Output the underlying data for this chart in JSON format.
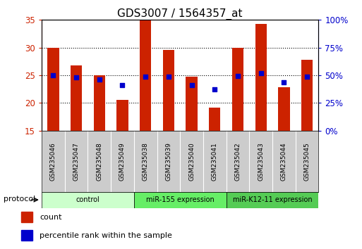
{
  "title": "GDS3007 / 1564357_at",
  "samples": [
    "GSM235046",
    "GSM235047",
    "GSM235048",
    "GSM235049",
    "GSM235038",
    "GSM235039",
    "GSM235040",
    "GSM235041",
    "GSM235042",
    "GSM235043",
    "GSM235044",
    "GSM235045"
  ],
  "count_values": [
    30.0,
    26.8,
    25.0,
    20.6,
    35.0,
    29.6,
    24.8,
    19.2,
    30.0,
    34.3,
    22.8,
    27.8
  ],
  "percentile_values": [
    25.0,
    24.6,
    24.2,
    23.2,
    24.8,
    24.8,
    23.2,
    22.5,
    24.9,
    25.4,
    23.8,
    24.8
  ],
  "ylim": [
    15,
    35
  ],
  "y2lim": [
    0,
    100
  ],
  "yticks": [
    15,
    20,
    25,
    30,
    35
  ],
  "y2ticks": [
    0,
    25,
    50,
    75,
    100
  ],
  "y2ticklabels": [
    "0%",
    "25%",
    "50%",
    "75%",
    "100%"
  ],
  "bar_color": "#cc2200",
  "dot_color": "#0000cc",
  "bg_color": "#ffffff",
  "plot_bg": "#ffffff",
  "sample_box_color": "#cccccc",
  "group_labels": [
    "control",
    "miR-155 expression",
    "miR-K12-11 expression"
  ],
  "group_ranges": [
    [
      0,
      3
    ],
    [
      4,
      7
    ],
    [
      8,
      11
    ]
  ],
  "group_colors_bg": [
    "#ccffcc",
    "#66ee66",
    "#55cc55"
  ],
  "protocol_label": "protocol",
  "legend_count": "count",
  "legend_pct": "percentile rank within the sample",
  "title_fontsize": 11,
  "bar_width": 0.5
}
